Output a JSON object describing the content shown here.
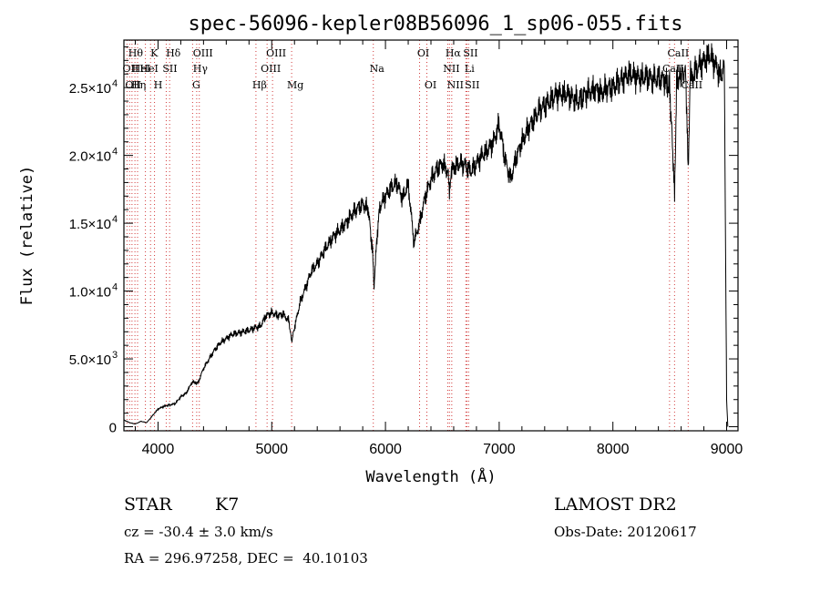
{
  "chart_data": {
    "type": "line",
    "title": "spec-56096-kepler08B56096_1_sp06-055.fits",
    "xlabel": "Wavelength (Å)",
    "ylabel": "Flux (relative)",
    "xlim": [
      3700,
      9100
    ],
    "ylim": [
      -300,
      28500
    ],
    "x_ticks": [
      {
        "value": 4000,
        "label": "4000"
      },
      {
        "value": 5000,
        "label": "5000"
      },
      {
        "value": 6000,
        "label": "6000"
      },
      {
        "value": 7000,
        "label": "7000"
      },
      {
        "value": 8000,
        "label": "8000"
      },
      {
        "value": 9000,
        "label": "9000"
      }
    ],
    "y_ticks": [
      {
        "value": 0,
        "mant": "0",
        "exp": ""
      },
      {
        "value": 5000,
        "mant": "5.0×10",
        "exp": "3"
      },
      {
        "value": 10000,
        "mant": "1.0×10",
        "exp": "4"
      },
      {
        "value": 15000,
        "mant": "1.5×10",
        "exp": "4"
      },
      {
        "value": 20000,
        "mant": "2.0×10",
        "exp": "4"
      },
      {
        "value": 25000,
        "mant": "2.5×10",
        "exp": "4"
      }
    ],
    "series": [
      {
        "name": "spectrum",
        "x": [
          3700,
          3750,
          3800,
          3850,
          3900,
          3950,
          4000,
          4050,
          4100,
          4150,
          4200,
          4250,
          4300,
          4350,
          4400,
          4450,
          4500,
          4550,
          4600,
          4650,
          4700,
          4750,
          4800,
          4850,
          4900,
          4950,
          5000,
          5050,
          5100,
          5150,
          5175,
          5200,
          5250,
          5300,
          5350,
          5400,
          5450,
          5500,
          5550,
          5600,
          5650,
          5700,
          5750,
          5800,
          5850,
          5890,
          5900,
          5920,
          5950,
          6000,
          6050,
          6100,
          6150,
          6200,
          6250,
          6300,
          6350,
          6400,
          6450,
          6500,
          6550,
          6563,
          6580,
          6600,
          6650,
          6700,
          6750,
          6800,
          6850,
          6900,
          6950,
          7000,
          7050,
          7100,
          7150,
          7200,
          7250,
          7300,
          7350,
          7400,
          7450,
          7500,
          7550,
          7600,
          7650,
          7700,
          7750,
          7800,
          7850,
          7900,
          7950,
          8000,
          8050,
          8100,
          8150,
          8200,
          8250,
          8300,
          8350,
          8400,
          8450,
          8498,
          8520,
          8542,
          8560,
          8600,
          8640,
          8662,
          8680,
          8700,
          8750,
          8800,
          8850,
          8900,
          8950,
          8980,
          9000,
          9010
        ],
        "y": [
          500,
          300,
          200,
          400,
          300,
          800,
          1300,
          1500,
          1600,
          1700,
          2200,
          2500,
          3300,
          3200,
          4300,
          5000,
          5700,
          6200,
          6500,
          6800,
          6900,
          7000,
          7100,
          7300,
          7400,
          8200,
          8400,
          8200,
          8300,
          7800,
          6300,
          7300,
          9200,
          10300,
          11500,
          12000,
          12800,
          13500,
          14100,
          14500,
          15000,
          15600,
          16100,
          16400,
          16000,
          12500,
          10000,
          13500,
          16200,
          17000,
          17600,
          18000,
          16800,
          17900,
          13600,
          15000,
          17000,
          18200,
          19000,
          19400,
          18800,
          17500,
          18600,
          19100,
          19400,
          19300,
          18800,
          19400,
          20000,
          20400,
          21000,
          22300,
          19800,
          18200,
          19900,
          21000,
          21900,
          22600,
          23300,
          23700,
          24000,
          24500,
          24500,
          24500,
          24200,
          24000,
          24500,
          24700,
          24900,
          24600,
          25000,
          25000,
          25400,
          25700,
          26000,
          25800,
          25700,
          25800,
          25600,
          25700,
          25600,
          25000,
          21500,
          17000,
          25300,
          26000,
          26100,
          19000,
          25700,
          25800,
          26600,
          26900,
          27400,
          26700,
          25800,
          26500,
          2000,
          0
        ]
      }
    ],
    "line_markers": [
      {
        "wl": 3727,
        "label": "OII",
        "row": 2
      },
      {
        "wl": 3750,
        "label": "OII",
        "row": 3
      },
      {
        "wl": 3771,
        "label": "Hθ",
        "row": 1
      },
      {
        "wl": 3797,
        "label": "Hη",
        "row": 3
      },
      {
        "wl": 3820,
        "label": "HeI",
        "row": 2
      },
      {
        "wl": 3889,
        "label": "HeI",
        "row": 2
      },
      {
        "wl": 3934,
        "label": "K",
        "row": 1
      },
      {
        "wl": 3969,
        "label": "H",
        "row": 3
      },
      {
        "wl": 4072,
        "label": "SII",
        "row": 2
      },
      {
        "wl": 4102,
        "label": "Hδ",
        "row": 1
      },
      {
        "wl": 4304,
        "label": "G",
        "row": 3
      },
      {
        "wl": 4340,
        "label": "Hγ",
        "row": 2
      },
      {
        "wl": 4363,
        "label": "OIII",
        "row": 1
      },
      {
        "wl": 4861,
        "label": "Hβ",
        "row": 3
      },
      {
        "wl": 4959,
        "label": "OIII",
        "row": 2
      },
      {
        "wl": 5007,
        "label": "OIII",
        "row": 1
      },
      {
        "wl": 5175,
        "label": "Mg",
        "row": 3
      },
      {
        "wl": 5893,
        "label": "Na",
        "row": 2
      },
      {
        "wl": 6300,
        "label": "OI",
        "row": 1
      },
      {
        "wl": 6364,
        "label": "OI",
        "row": 3
      },
      {
        "wl": 6548,
        "label": "NII",
        "row": 2
      },
      {
        "wl": 6563,
        "label": "Hα",
        "row": 1
      },
      {
        "wl": 6583,
        "label": "NII",
        "row": 3
      },
      {
        "wl": 6707,
        "label": "Li",
        "row": 2
      },
      {
        "wl": 6716,
        "label": "SII",
        "row": 1
      },
      {
        "wl": 6731,
        "label": "SII",
        "row": 3
      },
      {
        "wl": 8498,
        "label": "CaII",
        "row": 2
      },
      {
        "wl": 8542,
        "label": "CaII",
        "row": 1
      },
      {
        "wl": 8662,
        "label": "CaII",
        "row": 3
      }
    ]
  },
  "info": {
    "object_class": "STAR",
    "subclass": "K7",
    "survey": "LAMOST DR2",
    "redshift": "cz = -30.4 ± 3.0 km/s",
    "obs_date": "Obs-Date: 20120617",
    "coords": "RA = 296.97258, DEC =  40.10103"
  }
}
